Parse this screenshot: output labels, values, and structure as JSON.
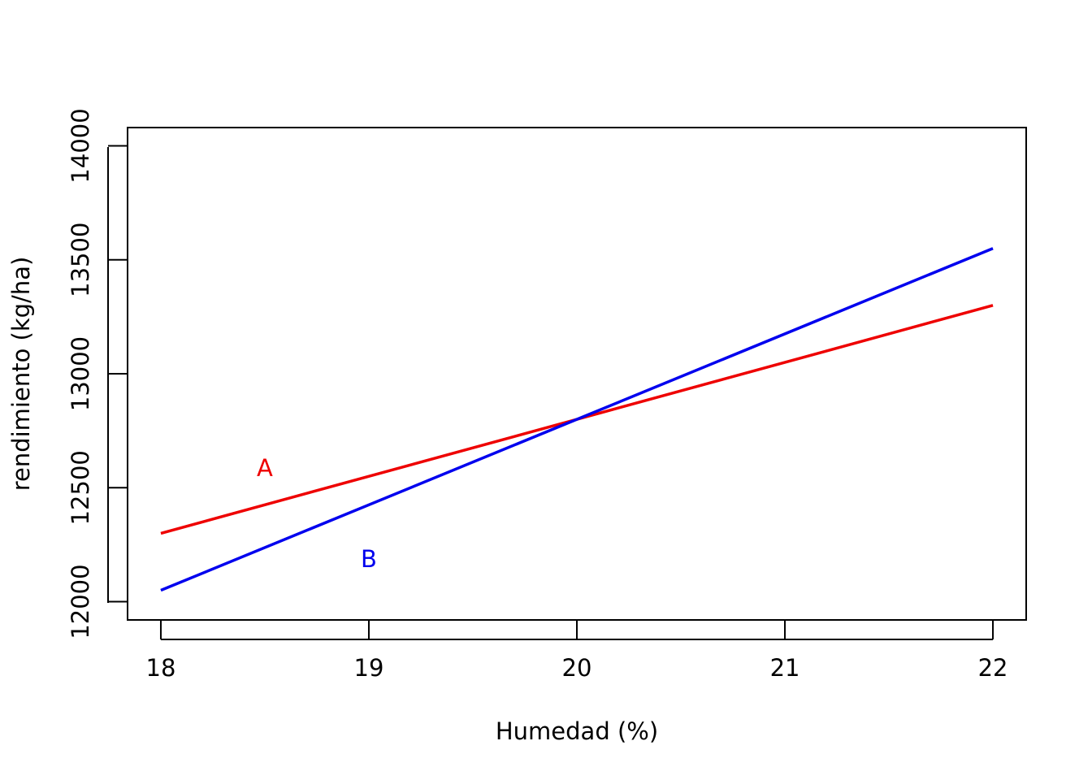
{
  "chart_data": {
    "type": "line",
    "title": "",
    "xlabel": "Humedad (%)",
    "ylabel": "rendimiento (kg/ha)",
    "xlim": [
      17.84,
      22.16
    ],
    "ylim": [
      11920,
      14080
    ],
    "xticks": [
      18,
      19,
      20,
      21,
      22
    ],
    "xtick_labels": [
      "18",
      "19",
      "20",
      "21",
      "22"
    ],
    "yticks": [
      12000,
      12500,
      13000,
      13500,
      14000
    ],
    "ytick_labels": [
      "12000",
      "12500",
      "13000",
      "13500",
      "14000"
    ],
    "grid": false,
    "legend": "none",
    "series": [
      {
        "x": [
          18,
          22
        ],
        "y": [
          12300,
          13300
        ],
        "color": "#ee0000"
      },
      {
        "x": [
          18,
          22
        ],
        "y": [
          12050,
          13550
        ],
        "color": "#0000ee"
      }
    ],
    "annotations": [
      {
        "text": "A",
        "x": 18.5,
        "y": 12580,
        "color": "#ee0000"
      },
      {
        "text": "B",
        "x": 19.0,
        "y": 12180,
        "color": "#0000ee"
      }
    ]
  }
}
